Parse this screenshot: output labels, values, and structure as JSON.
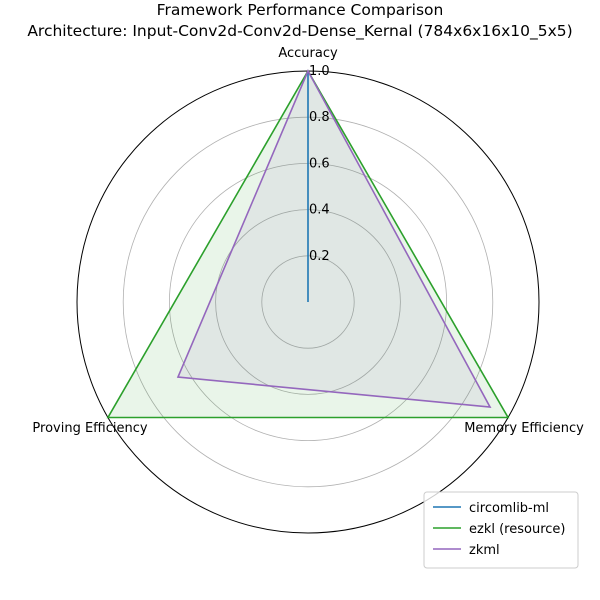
{
  "chart_data": {
    "type": "radar",
    "title": "Framework Performance Comparison",
    "subtitle": "Architecture: Input-Conv2d-Conv2d-Dense_Kernal (784x6x16x10_5x5)",
    "axes": [
      "Accuracy",
      "Memory Efficiency",
      "Proving Efficiency"
    ],
    "rlim": [
      0,
      1.0
    ],
    "rticks": [
      0.2,
      0.4,
      0.6,
      0.8,
      1.0
    ],
    "rtick_labels": [
      "0.2",
      "0.4",
      "0.6",
      "0.8",
      "1.0"
    ],
    "grid": true,
    "legend_position": "lower-right",
    "series": [
      {
        "name": "circomlib-ml",
        "values": [
          1.0,
          0.0,
          0.0
        ],
        "color": "#1f77b4",
        "fill": "#ff7f0e",
        "fill_opacity": 0.12
      },
      {
        "name": "ezkl (resource)",
        "values": [
          1.0,
          1.0,
          1.0
        ],
        "color": "#2ca02c",
        "fill": "#2ca02c",
        "fill_opacity": 0.1
      },
      {
        "name": "zkml",
        "values": [
          1.0,
          0.91,
          0.65
        ],
        "color": "#9467bd",
        "fill": "#9467bd",
        "fill_opacity": 0.1
      }
    ]
  }
}
